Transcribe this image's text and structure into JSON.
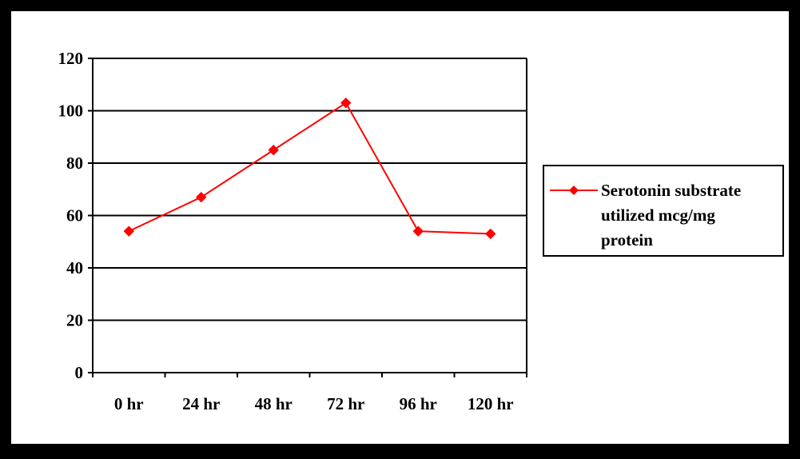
{
  "chart_data": {
    "type": "line",
    "categories": [
      "0 hr",
      "24 hr",
      "48 hr",
      "72 hr",
      "96 hr",
      "120 hr"
    ],
    "series": [
      {
        "name": "Serotonin substrate utilized mcg/mg protein",
        "legend_lines": [
          "Serotonin substrate",
          "utilized mcg/mg",
          "protein"
        ],
        "values": [
          54,
          67,
          85,
          103,
          54,
          53
        ],
        "color": "#FF0000",
        "marker": "diamond"
      }
    ],
    "y_ticks": [
      "0",
      "20",
      "40",
      "60",
      "80",
      "100",
      "120"
    ],
    "ylim": [
      0,
      120
    ],
    "y_step": 20,
    "title": "",
    "xlabel": "",
    "ylabel": "",
    "grid": "horizontal",
    "legend_position": "right",
    "colors": {
      "frame": "#000000",
      "background": "#FFFFFF",
      "gridline": "#000000",
      "series": "#FF0000"
    }
  }
}
